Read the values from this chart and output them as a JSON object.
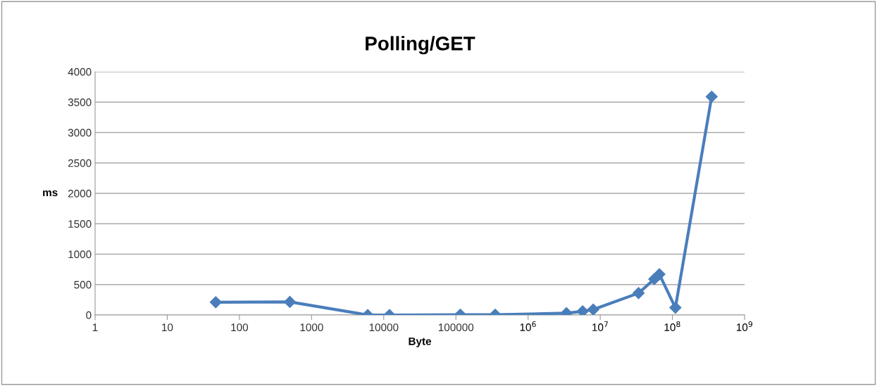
{
  "chart_data": {
    "type": "line",
    "title": "Polling/GET",
    "xlabel": "Byte",
    "ylabel": "ms",
    "log": "x",
    "x": [
      47,
      500,
      6000,
      12000,
      115000,
      350000,
      3400000,
      5700000,
      8000000,
      34000000,
      56000000,
      66000000,
      110000000,
      350000000
    ],
    "series": [
      {
        "color": "#4a7ebb",
        "values": [
          210,
          215,
          0,
          0,
          5,
          5,
          30,
          60,
          90,
          360,
          590,
          670,
          120,
          3590
        ]
      }
    ],
    "xlim": [
      1,
      1000000000
    ],
    "xticks": [
      1,
      10,
      100,
      1000,
      10000,
      100000,
      {
        "value": 1000000,
        "label": "10$^{6}$"
      },
      {
        "value": 10000000,
        "label": "10$^{7}$"
      },
      {
        "value": 100000000,
        "label": "10$^{8}$"
      },
      {
        "value": 1000000000,
        "label": "10$^{9}$"
      }
    ],
    "ylim": [
      0,
      4000
    ],
    "yticks": [
      0,
      500,
      1000,
      1500,
      2000,
      2500,
      3000,
      3500,
      4000
    ],
    "grid": "y",
    "marker": "diamond",
    "line_style": "solid"
  }
}
